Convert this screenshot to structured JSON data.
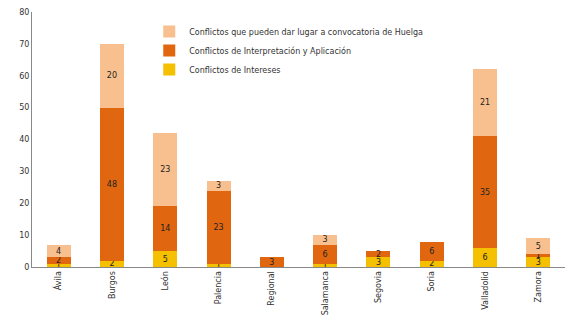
{
  "chart_data": {
    "type": "bar",
    "stacked": true,
    "data_labels": true,
    "grid": false,
    "legend": "top",
    "categories": [
      "Ávila",
      "Burgos",
      "León",
      "Palencia",
      "Regional",
      "Salamanca",
      "Segovia",
      "Soria",
      "Valladolid",
      "Zamora"
    ],
    "ylim": [
      0,
      80
    ],
    "yticks": [
      0,
      10,
      20,
      30,
      40,
      50,
      60,
      70,
      80
    ],
    "series": [
      {
        "name": "Conflictos de Intereses",
        "color": "#f5c000",
        "values": [
          1,
          2,
          5,
          1,
          null,
          1,
          3,
          2,
          6,
          3
        ]
      },
      {
        "name": "Conflictos de Interpretación y Aplicación",
        "color": "#e0670f",
        "values": [
          2,
          48,
          14,
          23,
          3,
          6,
          2,
          6,
          35,
          1
        ]
      },
      {
        "name": "Conflictos que pueden dar lugar a convocatoria de Huelga",
        "color": "#f9c08f",
        "values": [
          4,
          20,
          23,
          3,
          null,
          3,
          null,
          null,
          21,
          5
        ]
      }
    ]
  }
}
